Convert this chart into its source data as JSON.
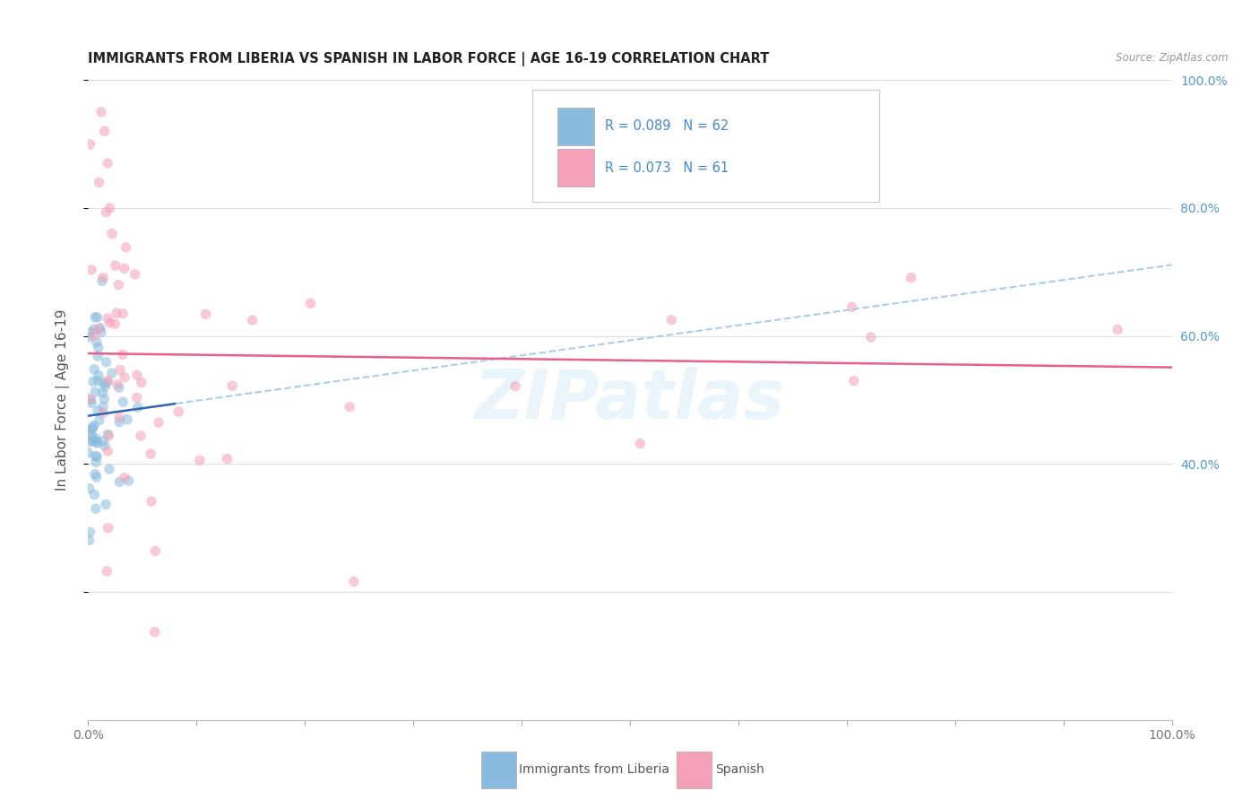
{
  "title": "IMMIGRANTS FROM LIBERIA VS SPANISH IN LABOR FORCE | AGE 16-19 CORRELATION CHART",
  "source": "Source: ZipAtlas.com",
  "ylabel": "In Labor Force | Age 16-19",
  "watermark": "ZIPatlas",
  "legend_label_blue": "Immigrants from Liberia",
  "legend_label_pink": "Spanish",
  "blue_color": "#88bbdd",
  "pink_color": "#f4a0b8",
  "blue_line_color": "#3366aa",
  "pink_line_color": "#e8608a",
  "dashed_line_color": "#aaccee",
  "right_axis_color": "#5599cc",
  "grid_color": "#e0e0e0",
  "marker_size": 70,
  "marker_alpha": 0.55,
  "line_width": 1.8
}
